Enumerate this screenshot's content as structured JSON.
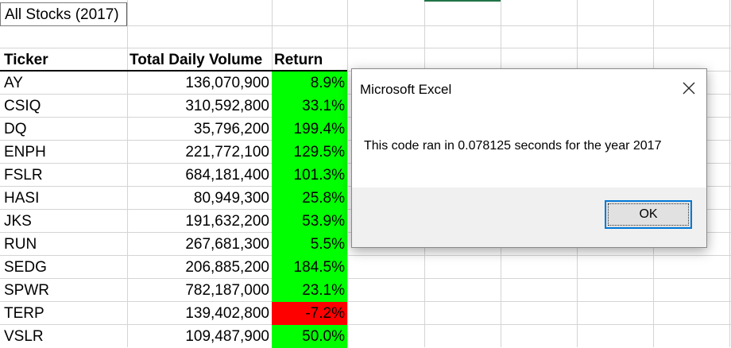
{
  "sheet": {
    "title": "All Stocks (2017)",
    "headers": {
      "ticker": "Ticker",
      "volume": "Total Daily Volume",
      "return": "Return"
    },
    "rows": [
      {
        "ticker": "AY",
        "volume": "136,070,900",
        "return": "8.9%",
        "status": "positive"
      },
      {
        "ticker": "CSIQ",
        "volume": "310,592,800",
        "return": "33.1%",
        "status": "positive"
      },
      {
        "ticker": "DQ",
        "volume": "35,796,200",
        "return": "199.4%",
        "status": "positive"
      },
      {
        "ticker": "ENPH",
        "volume": "221,772,100",
        "return": "129.5%",
        "status": "positive"
      },
      {
        "ticker": "FSLR",
        "volume": "684,181,400",
        "return": "101.3%",
        "status": "positive"
      },
      {
        "ticker": "HASI",
        "volume": "80,949,300",
        "return": "25.8%",
        "status": "positive"
      },
      {
        "ticker": "JKS",
        "volume": "191,632,200",
        "return": "53.9%",
        "status": "positive"
      },
      {
        "ticker": "RUN",
        "volume": "267,681,300",
        "return": "5.5%",
        "status": "positive"
      },
      {
        "ticker": "SEDG",
        "volume": "206,885,200",
        "return": "184.5%",
        "status": "positive"
      },
      {
        "ticker": "SPWR",
        "volume": "782,187,000",
        "return": "23.1%",
        "status": "positive"
      },
      {
        "ticker": "TERP",
        "volume": "139,402,800",
        "return": "-7.2%",
        "status": "negative"
      },
      {
        "ticker": "VSLR",
        "volume": "109,487,900",
        "return": "50.0%",
        "status": "positive"
      }
    ]
  },
  "colors": {
    "positive": "#00ff00",
    "negative": "#ff0000",
    "selection_accent": "#217346",
    "button_focus": "#0078d7"
  },
  "dialog": {
    "title": "Microsoft Excel",
    "message": "This code ran in 0.078125 seconds for the year 2017",
    "ok_label": "OK",
    "close_icon": "close-icon"
  }
}
